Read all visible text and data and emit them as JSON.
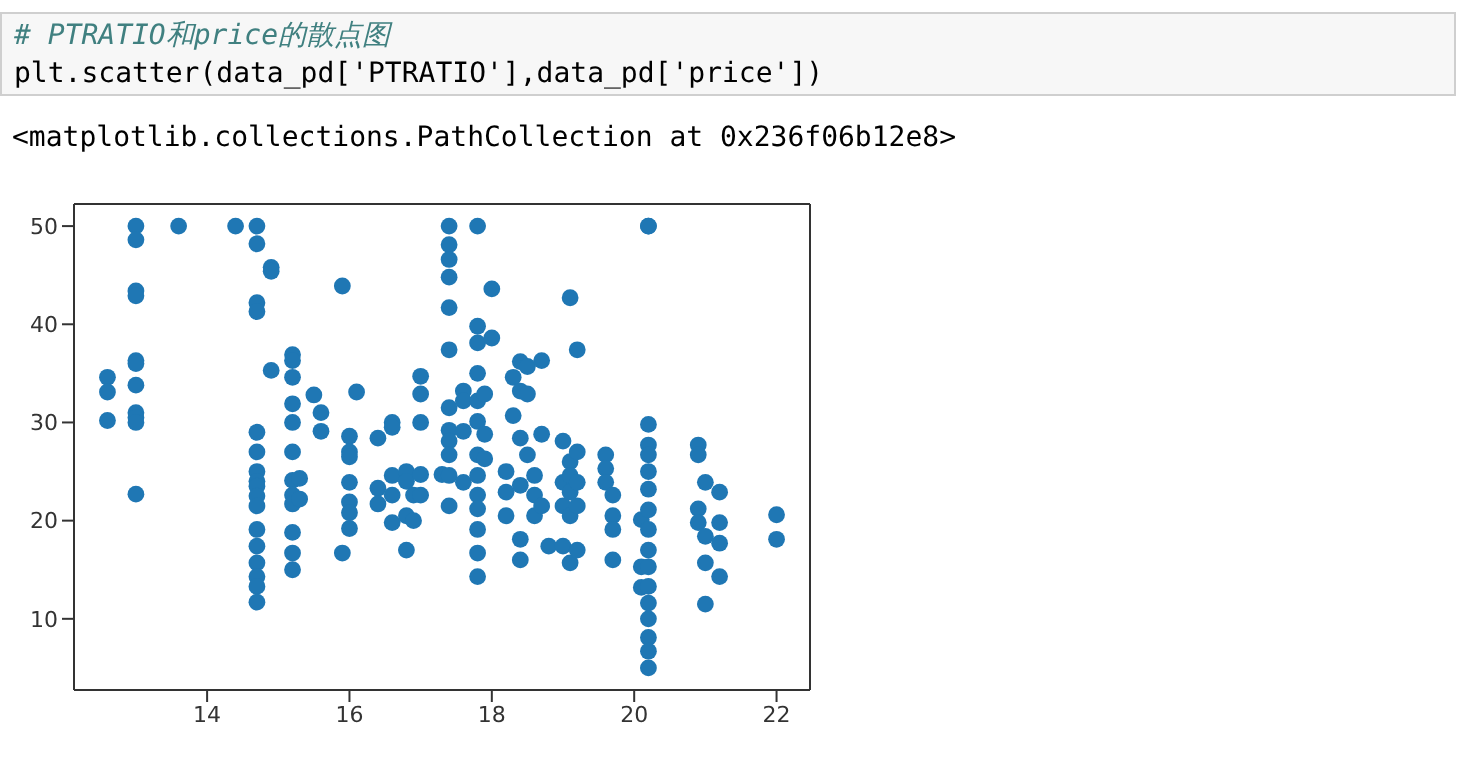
{
  "chart_data": {
    "type": "scatter",
    "annotations": [
      "# PTRATIO和price的散点图",
      "plt.scatter(data_pd['PTRATIO'],data_pd['price'])",
      "<matplotlib.collections.PathCollection at 0x236f06b12e8>"
    ],
    "x": [
      12.6,
      12.6,
      12.6,
      13.0,
      13.0,
      13.0,
      13.0,
      13.0,
      13.0,
      13.0,
      13.0,
      13.0,
      13.0,
      13.0,
      13.6,
      14.4,
      14.7,
      14.7,
      14.7,
      14.7,
      14.7,
      14.7,
      14.7,
      14.7,
      14.7,
      14.7,
      14.7,
      14.7,
      14.7,
      14.7,
      14.7,
      14.7,
      14.7,
      14.9,
      14.9,
      14.9,
      15.2,
      15.2,
      15.2,
      15.2,
      15.2,
      15.2,
      15.2,
      15.2,
      15.2,
      15.2,
      15.2,
      15.2,
      15.3,
      15.3,
      15.5,
      15.6,
      15.6,
      15.9,
      15.9,
      16.0,
      16.0,
      16.0,
      16.0,
      16.0,
      16.0,
      16.0,
      16.1,
      16.4,
      16.4,
      16.4,
      16.6,
      16.6,
      16.6,
      16.6,
      16.6,
      16.8,
      16.8,
      16.8,
      16.8,
      16.9,
      16.9,
      17.0,
      17.0,
      17.0,
      17.0,
      17.0,
      17.3,
      17.4,
      17.4,
      17.4,
      17.4,
      17.4,
      17.4,
      17.4,
      17.4,
      17.4,
      17.4,
      17.4,
      17.4,
      17.6,
      17.6,
      17.6,
      17.6,
      17.8,
      17.8,
      17.8,
      17.8,
      17.8,
      17.8,
      17.8,
      17.8,
      17.8,
      17.8,
      17.8,
      17.8,
      17.8,
      17.9,
      17.9,
      17.9,
      18.0,
      18.0,
      18.2,
      18.2,
      18.2,
      18.3,
      18.3,
      18.4,
      18.4,
      18.4,
      18.4,
      18.4,
      18.4,
      18.5,
      18.5,
      18.5,
      18.6,
      18.6,
      18.6,
      18.7,
      18.7,
      18.7,
      18.8,
      19.0,
      19.0,
      19.0,
      19.0,
      19.1,
      19.1,
      19.1,
      19.1,
      19.1,
      19.1,
      19.2,
      19.2,
      19.2,
      19.2,
      19.2,
      19.6,
      19.6,
      19.6,
      19.7,
      19.7,
      19.7,
      19.7,
      20.1,
      20.1,
      20.1,
      20.2,
      20.2,
      20.2,
      20.2,
      20.2,
      20.2,
      20.2,
      20.2,
      20.2,
      20.2,
      20.2,
      20.2,
      20.2,
      20.2,
      20.2,
      20.2,
      20.2,
      20.9,
      20.9,
      20.9,
      20.9,
      21.0,
      21.0,
      21.0,
      21.0,
      21.2,
      21.2,
      21.2,
      21.2,
      22.0,
      22.0
    ],
    "values": [
      34.6,
      33.1,
      30.2,
      50,
      48.6,
      43.4,
      42.9,
      36.3,
      36,
      33.8,
      31,
      30.5,
      30,
      22.7,
      50,
      50,
      50,
      48.2,
      42.2,
      41.3,
      29,
      27,
      25,
      24,
      23.5,
      22.5,
      21.5,
      19.1,
      17.4,
      15.7,
      14.3,
      13.3,
      11.7,
      45.8,
      45.4,
      35.3,
      36.9,
      36.3,
      34.6,
      31.9,
      30,
      27,
      24.1,
      22.6,
      21.7,
      18.8,
      16.7,
      15,
      24.3,
      22.2,
      32.8,
      31,
      29.1,
      43.9,
      16.7,
      28.6,
      27,
      26.5,
      23.9,
      21.9,
      20.8,
      19.2,
      33.1,
      28.4,
      23.3,
      21.7,
      30,
      29.5,
      24.6,
      22.6,
      19.8,
      25,
      24,
      20.5,
      17,
      22.6,
      20,
      34.7,
      32.9,
      30,
      24.7,
      22.6,
      24.7,
      50,
      48.1,
      46.6,
      44.8,
      41.7,
      37.4,
      31.5,
      29.2,
      28.1,
      26.7,
      24.6,
      21.5,
      33.2,
      32.2,
      29.1,
      23.9,
      50,
      39.8,
      38.1,
      35,
      32.2,
      30.1,
      26.7,
      24.6,
      22.6,
      21.2,
      19.1,
      16.7,
      14.3,
      32.9,
      28.8,
      26.3,
      43.6,
      38.6,
      25,
      22.9,
      20.5,
      34.6,
      30.7,
      36.2,
      33.2,
      28.4,
      23.6,
      18.1,
      16,
      35.7,
      32.9,
      26.7,
      24.6,
      22.6,
      20.5,
      36.3,
      28.8,
      21.5,
      17.4,
      28.1,
      23.9,
      21.5,
      17.4,
      42.7,
      26,
      24.6,
      22.9,
      20.5,
      15.7,
      37.4,
      27,
      23.9,
      21.5,
      17,
      26.7,
      25.3,
      23.9,
      22.6,
      20.5,
      19.1,
      16,
      20.1,
      15.3,
      13.2,
      50,
      50,
      29.8,
      27.7,
      26.7,
      25,
      23.2,
      21.1,
      19.1,
      17,
      15.3,
      13.3,
      11.6,
      10,
      8.1,
      6.7,
      5,
      27.7,
      26.7,
      21.2,
      19.8,
      23.9,
      18.4,
      15.7,
      11.5,
      22.9,
      19.8,
      17.7,
      14.3,
      20.6,
      18.1
    ],
    "color": "#1f77b4",
    "marker": "circle",
    "xlim": [
      12.13,
      22.47
    ],
    "xticks": [
      14,
      16,
      18,
      20,
      22
    ],
    "ylim": [
      2.75,
      52.25
    ],
    "yticks": [
      10,
      20,
      30,
      40,
      50
    ]
  }
}
